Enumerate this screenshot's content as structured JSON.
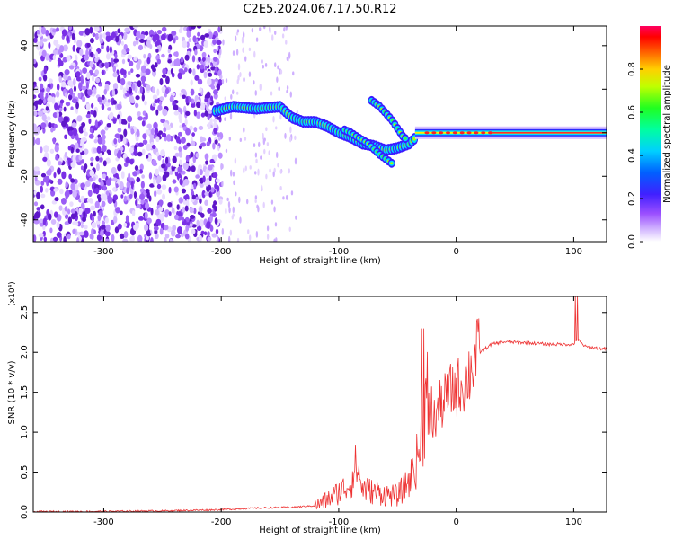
{
  "title": "C2E5.2024.067.17.50.R12",
  "chart_data": [
    {
      "type": "heatmap",
      "xlabel": "Height of straight line (km)",
      "ylabel": "Frequency (Hz)",
      "xlim": [
        -360,
        128
      ],
      "ylim": [
        -50,
        49
      ],
      "xticks": [
        -300,
        -200,
        -100,
        0,
        100
      ],
      "yticks": [
        -40,
        -20,
        0,
        20,
        40
      ],
      "grid": false,
      "colorbar": {
        "label": "Normalized spectral amplitude",
        "range": [
          0,
          1
        ],
        "ticks": [
          "0.0",
          "0.2",
          "0.4",
          "0.6",
          "0.8"
        ],
        "colormap": [
          "#ffffff",
          "#c79bff",
          "#7b2fe0",
          "#2020ff",
          "#00c0ff",
          "#00ff60",
          "#ffff00",
          "#ff8000",
          "#ff0000",
          "#ff0080"
        ]
      },
      "signal_track": [
        [
          -205,
          10
        ],
        [
          -190,
          12
        ],
        [
          -170,
          11
        ],
        [
          -150,
          12
        ],
        [
          -140,
          7
        ],
        [
          -130,
          5
        ],
        [
          -120,
          5
        ],
        [
          -110,
          3
        ],
        [
          -100,
          0
        ],
        [
          -90,
          -2
        ],
        [
          -80,
          -5
        ],
        [
          -70,
          -6
        ],
        [
          -60,
          -8
        ],
        [
          -50,
          -7
        ],
        [
          -40,
          -5
        ],
        [
          -30,
          0
        ],
        [
          -20,
          0
        ],
        [
          0,
          1
        ],
        [
          20,
          0
        ],
        [
          60,
          0
        ],
        [
          100,
          0
        ],
        [
          128,
          0
        ]
      ],
      "secondary_track": [
        [
          -75,
          16
        ],
        [
          -65,
          12
        ],
        [
          -55,
          6
        ],
        [
          -45,
          -2
        ],
        [
          -40,
          -4
        ]
      ],
      "trailing_track": [
        [
          -110,
          5
        ],
        [
          -90,
          0
        ],
        [
          -75,
          -5
        ],
        [
          -65,
          -10
        ],
        [
          -55,
          -14
        ]
      ]
    },
    {
      "type": "line",
      "xlabel": "Height of straight line (km)",
      "ylabel": "SNR (10 * v/v)",
      "scale_label": "(x10⁴)",
      "xlim": [
        -360,
        128
      ],
      "ylim": [
        0,
        2.7
      ],
      "xticks": [
        -300,
        -200,
        -100,
        0,
        100
      ],
      "yticks": [
        "0.0",
        "0.5",
        "1.0",
        "1.5",
        "2.0",
        "2.5"
      ],
      "grid": false,
      "series": [
        {
          "color": "#ee3333",
          "x": [
            -360,
            -300,
            -250,
            -200,
            -170,
            -140,
            -120,
            -110,
            -100,
            -90,
            -85,
            -80,
            -70,
            -60,
            -50,
            -45,
            -40,
            -35,
            -30,
            -28,
            -25,
            -22,
            -20,
            -15,
            -10,
            -5,
            0,
            5,
            10,
            15,
            20,
            30,
            40,
            60,
            80,
            100,
            104,
            110,
            128
          ],
          "y": [
            0.005,
            0.008,
            0.015,
            0.03,
            0.05,
            0.06,
            0.08,
            0.15,
            0.25,
            0.35,
            0.6,
            0.3,
            0.25,
            0.22,
            0.2,
            0.3,
            0.4,
            0.55,
            0.9,
            1.1,
            1.5,
            1.2,
            1.1,
            1.3,
            1.4,
            1.5,
            1.55,
            1.6,
            1.7,
            1.9,
            2.0,
            2.1,
            2.13,
            2.12,
            2.1,
            2.1,
            2.15,
            2.07,
            2.04
          ]
        }
      ]
    }
  ]
}
